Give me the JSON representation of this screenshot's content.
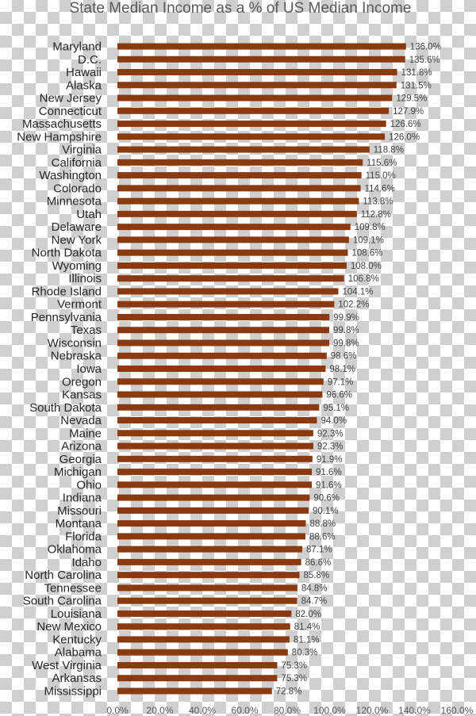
{
  "chart_data": {
    "type": "bar",
    "orientation": "horizontal",
    "title": "State Median Income as a % of US Median Income",
    "categories": [
      "Maryland",
      "D.C.",
      "Hawaii",
      "Alaska",
      "New Jersey",
      "Connecticut",
      "Massachusetts",
      "New Hampshire",
      "Virginia",
      "California",
      "Washington",
      "Colorado",
      "Minnesota",
      "Utah",
      "Delaware",
      "New York",
      "North Dakota",
      "Wyoming",
      "Illinois",
      "Rhode Island",
      "Vermont",
      "Pennsylvania",
      "Texas",
      "Wisconsin",
      "Nebraska",
      "Iowa",
      "Oregon",
      "Kansas",
      "South Dakota",
      "Nevada",
      "Maine",
      "Arizona",
      "Georgia",
      "Michigan",
      "Ohio",
      "Indiana",
      "Missouri",
      "Montana",
      "Florida",
      "Oklahoma",
      "Idaho",
      "North Carolina",
      "Tennessee",
      "South Carolina",
      "Louisiana",
      "New Mexico",
      "Kentucky",
      "Alabama",
      "West Virginia",
      "Arkansas",
      "Mississippi"
    ],
    "values": [
      136.0,
      135.6,
      131.8,
      131.5,
      129.5,
      127.9,
      126.6,
      126.0,
      118.8,
      115.6,
      115.0,
      114.6,
      113.8,
      112.8,
      109.8,
      109.1,
      108.6,
      108.0,
      106.8,
      104.1,
      102.2,
      99.9,
      99.8,
      99.8,
      98.6,
      98.1,
      97.1,
      96.6,
      95.1,
      94.0,
      92.3,
      92.3,
      91.9,
      91.6,
      91.6,
      90.6,
      90.1,
      88.8,
      88.6,
      87.1,
      86.6,
      85.8,
      84.8,
      84.7,
      82.0,
      81.4,
      81.1,
      80.3,
      75.3,
      75.3,
      72.8
    ],
    "data_labels": [
      "136.0%",
      "135.6%",
      "131.8%",
      "131.5%",
      "129.5%",
      "127.9%",
      "126.6%",
      "126.0%",
      "118.8%",
      "115.6%",
      "115.0%",
      "114.6%",
      "113.8%",
      "112.8%",
      "109.8%",
      "109.1%",
      "108.6%",
      "108.0%",
      "106.8%",
      "104.1%",
      "102.2%",
      "99.9%",
      "99.8%",
      "99.8%",
      "98.6%",
      "98.1%",
      "97.1%",
      "96.6%",
      "95.1%",
      "94.0%",
      "92.3%",
      "92.3%",
      "91.9%",
      "91.6%",
      "91.6%",
      "90.6%",
      "90.1%",
      "88.8%",
      "88.6%",
      "87.1%",
      "86.6%",
      "85.8%",
      "84.8%",
      "84.7%",
      "82.0%",
      "81.4%",
      "81.1%",
      "80.3%",
      "75.3%",
      "75.3%",
      "72.8%"
    ],
    "x_ticks": [
      0,
      20,
      40,
      60,
      80,
      100,
      120,
      140,
      160
    ],
    "x_tick_labels": [
      "0.0%",
      "20.0%",
      "40.0%",
      "60.0%",
      "80.0%",
      "100.0%",
      "120.0%",
      "140.0%",
      "160.0%"
    ],
    "xlim": [
      0,
      160
    ],
    "grid": false,
    "legend": "none",
    "bar_color": "#8b3a0f"
  }
}
